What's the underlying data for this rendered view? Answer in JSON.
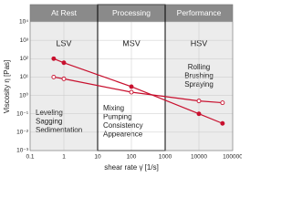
{
  "chart_data": {
    "type": "line",
    "x_label": "shear rate γ̇ [1/s]",
    "y_label": "Viscosity η [Pas]",
    "x": [
      0.5,
      1,
      100,
      10000,
      50000
    ],
    "series": [
      {
        "color": "#c8102e",
        "marker": "filled",
        "values": [
          100,
          60,
          3,
          0.1,
          0.03
        ]
      },
      {
        "color": "#c8102e",
        "marker": "open",
        "values": [
          10,
          8,
          1.5,
          0.5,
          0.4
        ]
      }
    ],
    "xscale": "log",
    "yscale": "log",
    "xlim": [
      0.1,
      100000
    ],
    "ylim": [
      0.001,
      10000
    ],
    "xticks": [
      0.1,
      1,
      10,
      100,
      1000,
      10000,
      100000
    ],
    "yticks": [
      {
        "value": 0.001,
        "label": "10⁻³"
      },
      {
        "value": 0.01,
        "label": "10⁻²"
      },
      {
        "value": 0.1,
        "label": "10⁻¹"
      },
      {
        "value": 1,
        "label": "10⁰"
      },
      {
        "value": 10,
        "label": "10¹"
      },
      {
        "value": 100,
        "label": "10²"
      },
      {
        "value": 1000,
        "label": "10³"
      },
      {
        "value": 10000,
        "label": "10⁴"
      }
    ],
    "grid": true,
    "regions": [
      {
        "header": "At Rest",
        "name": "LSV",
        "text": [
          "Leveling",
          "Sagging",
          "Sedimentation"
        ],
        "from": 0.1,
        "to": 10
      },
      {
        "header": "Processing",
        "name": "MSV",
        "text": [
          "Mixing",
          "Pumping",
          "Consistency",
          "Appearence"
        ],
        "from": 10,
        "to": 1000
      },
      {
        "header": "Performance",
        "name": "HSV",
        "text": [
          "Rolling",
          "Brushing",
          "Spraying"
        ],
        "from": 1000,
        "to": 100000
      }
    ]
  }
}
